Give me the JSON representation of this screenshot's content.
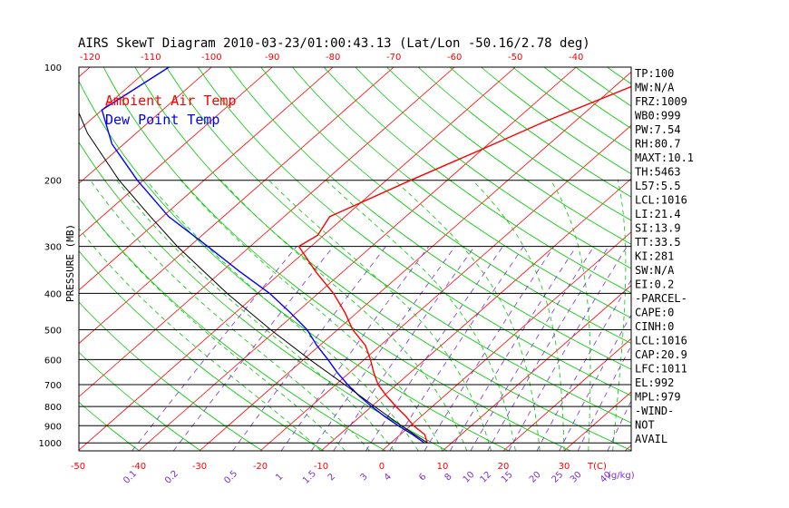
{
  "chart_data": {
    "type": "line",
    "title": "AIRS SkewT Diagram 2010-03-23/01:00:43.13 (Lat/Lon -50.16/2.78 deg)",
    "ylabel": "PRESSURE (MB)",
    "xlabel": "T(C)",
    "mixing_ratio_label": "(g/kg)",
    "y_scale": "log",
    "ylim": [
      1050,
      100
    ],
    "pressure_ticks": [
      100,
      200,
      300,
      400,
      500,
      600,
      700,
      800,
      900,
      1000
    ],
    "bottom_temp_ticks": [
      -50,
      -40,
      -30,
      -20,
      -10,
      0,
      10,
      20,
      30
    ],
    "top_temp_ticks": [
      -120,
      -110,
      -100,
      -90,
      -80,
      -70,
      -60,
      -50,
      -40
    ],
    "mixing_ratio_values": [
      "0.1",
      "0.2",
      "0.5",
      "1",
      "1.5",
      "2",
      "3",
      "4",
      "6",
      "8",
      "10",
      "12",
      "15",
      "20",
      "25",
      "30",
      "40"
    ],
    "legend": [
      {
        "name": "Ambient Air Temp",
        "color": "#ff0000"
      },
      {
        "name": "Dew Point Temp",
        "color": "#0000ff"
      }
    ],
    "colors": {
      "isotherm": "#ff0000",
      "dry_adiabat": "#00c800",
      "moist_adiabat": "#00c800",
      "mixing_ratio": "#7a2fd0",
      "ambient": "#ff0000",
      "dewpoint": "#0000ff",
      "parcel": "#000000"
    },
    "series": [
      {
        "name": "Ambient Air Temp",
        "points": [
          {
            "p": 1000,
            "t": 6.0
          },
          {
            "p": 950,
            "t": 4.0
          },
          {
            "p": 900,
            "t": 0.5
          },
          {
            "p": 850,
            "t": -2.5
          },
          {
            "p": 800,
            "t": -6.0
          },
          {
            "p": 750,
            "t": -9.5
          },
          {
            "p": 700,
            "t": -13.0
          },
          {
            "p": 650,
            "t": -16.0
          },
          {
            "p": 600,
            "t": -19.0
          },
          {
            "p": 550,
            "t": -22.5
          },
          {
            "p": 500,
            "t": -27.5
          },
          {
            "p": 450,
            "t": -32.0
          },
          {
            "p": 400,
            "t": -37.5
          },
          {
            "p": 350,
            "t": -44.5
          },
          {
            "p": 300,
            "t": -52.0
          },
          {
            "p": 280,
            "t": -51.0
          },
          {
            "p": 250,
            "t": -52.5
          },
          {
            "p": 200,
            "t": -46.0
          },
          {
            "p": 165,
            "t": -40.0
          },
          {
            "p": 140,
            "t": -35.0
          },
          {
            "p": 100,
            "t": -23.0
          }
        ]
      },
      {
        "name": "Dew Point Temp",
        "points": [
          {
            "p": 1000,
            "t": 5.5
          },
          {
            "p": 950,
            "t": 2.0
          },
          {
            "p": 900,
            "t": -2.0
          },
          {
            "p": 850,
            "t": -6.0
          },
          {
            "p": 800,
            "t": -10.0
          },
          {
            "p": 750,
            "t": -14.0
          },
          {
            "p": 700,
            "t": -18.0
          },
          {
            "p": 650,
            "t": -22.0
          },
          {
            "p": 600,
            "t": -26.0
          },
          {
            "p": 550,
            "t": -30.5
          },
          {
            "p": 500,
            "t": -35.0
          },
          {
            "p": 450,
            "t": -41.0
          },
          {
            "p": 400,
            "t": -48.0
          },
          {
            "p": 350,
            "t": -57.0
          },
          {
            "p": 300,
            "t": -67.0
          },
          {
            "p": 250,
            "t": -79.0
          },
          {
            "p": 200,
            "t": -91.0
          },
          {
            "p": 160,
            "t": -102.0
          },
          {
            "p": 130,
            "t": -110.0
          },
          {
            "p": 100,
            "t": -107.0
          }
        ]
      },
      {
        "name": "Parcel",
        "points": [
          {
            "p": 1000,
            "t": 6.0
          },
          {
            "p": 900,
            "t": -1.5
          },
          {
            "p": 800,
            "t": -9.5
          },
          {
            "p": 700,
            "t": -18.5
          },
          {
            "p": 600,
            "t": -29.0
          },
          {
            "p": 500,
            "t": -41.0
          },
          {
            "p": 400,
            "t": -55.0
          },
          {
            "p": 300,
            "t": -72.0
          },
          {
            "p": 250,
            "t": -82.0
          },
          {
            "p": 200,
            "t": -94.0
          },
          {
            "p": 150,
            "t": -108.0
          },
          {
            "p": 100,
            "t": -125.0
          }
        ]
      }
    ],
    "indices": [
      "TP:100",
      "MW:N/A",
      "FRZ:1009",
      "WB0:999",
      "PW:7.54",
      "RH:80.7",
      "MAXT:10.1",
      "TH:5463",
      "L57:5.5",
      "LCL:1016",
      "LI:21.4",
      "SI:13.9",
      "TT:33.5",
      "KI:281",
      "SW:N/A",
      "EI:0.2",
      "-PARCEL-",
      "CAPE:0",
      "CINH:0",
      "LCL:1016",
      "CAP:20.9",
      "LFC:1011",
      "EL:992",
      "MPL:979",
      "-WIND-",
      "NOT",
      "AVAIL"
    ]
  }
}
